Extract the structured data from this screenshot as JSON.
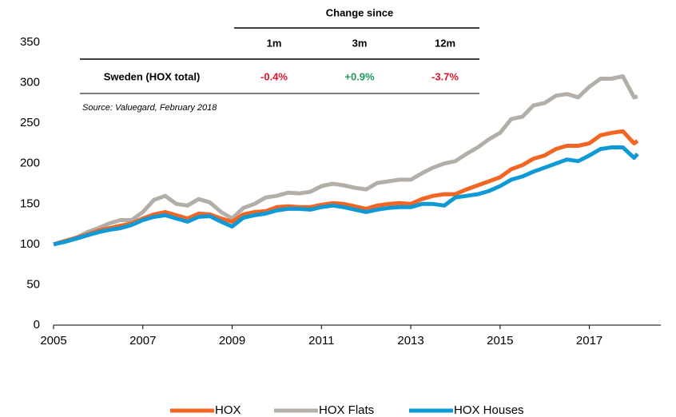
{
  "chart_data": {
    "type": "line",
    "x": [
      2005,
      2005.25,
      2005.5,
      2005.75,
      2006,
      2006.25,
      2006.5,
      2006.75,
      2007,
      2007.25,
      2007.5,
      2007.75,
      2008,
      2008.25,
      2008.5,
      2008.75,
      2009,
      2009.25,
      2009.5,
      2009.75,
      2010,
      2010.25,
      2010.5,
      2010.75,
      2011,
      2011.25,
      2011.5,
      2011.75,
      2012,
      2012.25,
      2012.5,
      2012.75,
      2013,
      2013.25,
      2013.5,
      2013.75,
      2014,
      2014.25,
      2014.5,
      2014.75,
      2015,
      2015.25,
      2015.5,
      2015.75,
      2016,
      2016.25,
      2016.5,
      2016.75,
      2017,
      2017.25,
      2017.5,
      2017.75,
      2018,
      2018.08
    ],
    "series": [
      {
        "name": "HOX",
        "color": "#f26522",
        "values": [
          100,
          104,
          108,
          112,
          117,
          120,
          123,
          126,
          132,
          137,
          140,
          136,
          132,
          138,
          137,
          132,
          128,
          137,
          140,
          141,
          146,
          147,
          146,
          146,
          149,
          151,
          150,
          147,
          144,
          148,
          150,
          151,
          150,
          156,
          160,
          162,
          162,
          168,
          173,
          178,
          183,
          193,
          198,
          206,
          210,
          218,
          222,
          222,
          225,
          235,
          238,
          240,
          225,
          228
        ]
      },
      {
        "name": "HOX Flats",
        "color": "#b3aea8",
        "values": [
          100,
          104,
          108,
          115,
          120,
          126,
          130,
          130,
          140,
          155,
          160,
          150,
          148,
          156,
          152,
          140,
          132,
          145,
          150,
          158,
          160,
          164,
          163,
          165,
          172,
          175,
          173,
          170,
          168,
          176,
          178,
          180,
          180,
          188,
          195,
          200,
          203,
          212,
          220,
          230,
          238,
          255,
          258,
          272,
          275,
          284,
          286,
          282,
          295,
          305,
          305,
          308,
          282,
          283
        ]
      },
      {
        "name": "HOX Houses",
        "color": "#0f9ad6",
        "values": [
          100,
          103,
          107,
          111,
          115,
          118,
          120,
          124,
          130,
          134,
          136,
          132,
          128,
          134,
          135,
          128,
          122,
          133,
          136,
          138,
          142,
          144,
          144,
          143,
          146,
          148,
          146,
          143,
          140,
          143,
          145,
          146,
          146,
          150,
          150,
          148,
          158,
          160,
          162,
          166,
          172,
          180,
          184,
          190,
          195,
          200,
          205,
          203,
          210,
          218,
          220,
          220,
          207,
          212
        ]
      }
    ],
    "xlim": [
      2005,
      2018.6
    ],
    "xticks": [
      2005,
      2007,
      2009,
      2011,
      2013,
      2015,
      2017
    ],
    "ylim": [
      0,
      350
    ],
    "yticks": [
      0,
      50,
      100,
      150,
      200,
      250,
      300,
      350
    ],
    "grid": false,
    "legend": "bottom"
  },
  "table": {
    "header": "Change since",
    "columns": [
      "1m",
      "3m",
      "12m"
    ],
    "rows": [
      {
        "label": "Sweden (HOX total)",
        "cells": [
          "-0.4%",
          "+0.9%",
          "-3.7%"
        ],
        "colors": [
          "#e8132a",
          "#1a9a5a",
          "#e8132a"
        ]
      }
    ],
    "source": "Source: Valuegard, February 2018"
  }
}
